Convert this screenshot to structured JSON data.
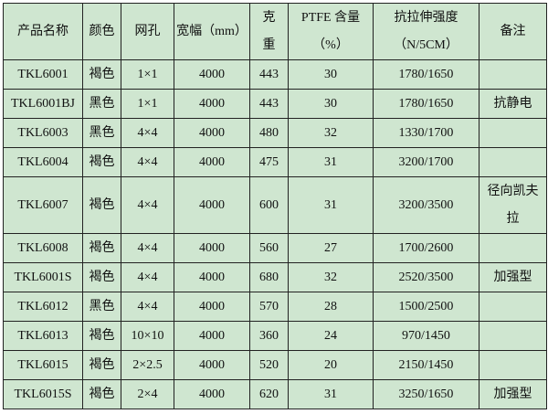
{
  "header": {
    "name": "产品名称",
    "color": "颜色",
    "mesh": "网孔",
    "width": "宽幅（mm）",
    "weight": "克重",
    "ptfe": "PTFE 含量（%）",
    "tensile": "抗拉伸强度（N/5CM）",
    "note": "备注"
  },
  "rows": [
    {
      "name": "TKL6001",
      "color": "褐色",
      "mesh": "1×1",
      "width": "4000",
      "weight": "443",
      "ptfe": "30",
      "tensile": "1780/1650",
      "note": ""
    },
    {
      "name": "TKL6001BJ",
      "color": "黑色",
      "mesh": "1×1",
      "width": "4000",
      "weight": "443",
      "ptfe": "30",
      "tensile": "1780/1650",
      "note": "抗静电"
    },
    {
      "name": "TKL6003",
      "color": "黑色",
      "mesh": "4×4",
      "width": "4000",
      "weight": "480",
      "ptfe": "32",
      "tensile": "1330/1700",
      "note": ""
    },
    {
      "name": "TKL6004",
      "color": "褐色",
      "mesh": "4×4",
      "width": "4000",
      "weight": "475",
      "ptfe": "31",
      "tensile": "3200/1700",
      "note": ""
    },
    {
      "name": "TKL6007",
      "color": "褐色",
      "mesh": "4×4",
      "width": "4000",
      "weight": "600",
      "ptfe": "31",
      "tensile": "3200/3500",
      "note": "径向凯夫拉"
    },
    {
      "name": "TKL6008",
      "color": "褐色",
      "mesh": "4×4",
      "width": "4000",
      "weight": "560",
      "ptfe": "27",
      "tensile": "1700/2600",
      "note": ""
    },
    {
      "name": "TKL6001S",
      "color": "褐色",
      "mesh": "4×4",
      "width": "4000",
      "weight": "680",
      "ptfe": "32",
      "tensile": "2520/3500",
      "note": "加强型"
    },
    {
      "name": "TKL6012",
      "color": "黑色",
      "mesh": "4×4",
      "width": "4000",
      "weight": "570",
      "ptfe": "28",
      "tensile": "1500/2500",
      "note": ""
    },
    {
      "name": "TKL6013",
      "color": "褐色",
      "mesh": "10×10",
      "width": "4000",
      "weight": "360",
      "ptfe": "24",
      "tensile": "970/1450",
      "note": ""
    },
    {
      "name": "TKL6015",
      "color": "褐色",
      "mesh": "2×2.5",
      "width": "4000",
      "weight": "520",
      "ptfe": "20",
      "tensile": "2150/1450",
      "note": ""
    },
    {
      "name": "TKL6015S",
      "color": "褐色",
      "mesh": "2×4",
      "width": "4000",
      "weight": "620",
      "ptfe": "31",
      "tensile": "3250/1650",
      "note": "加强型"
    }
  ]
}
